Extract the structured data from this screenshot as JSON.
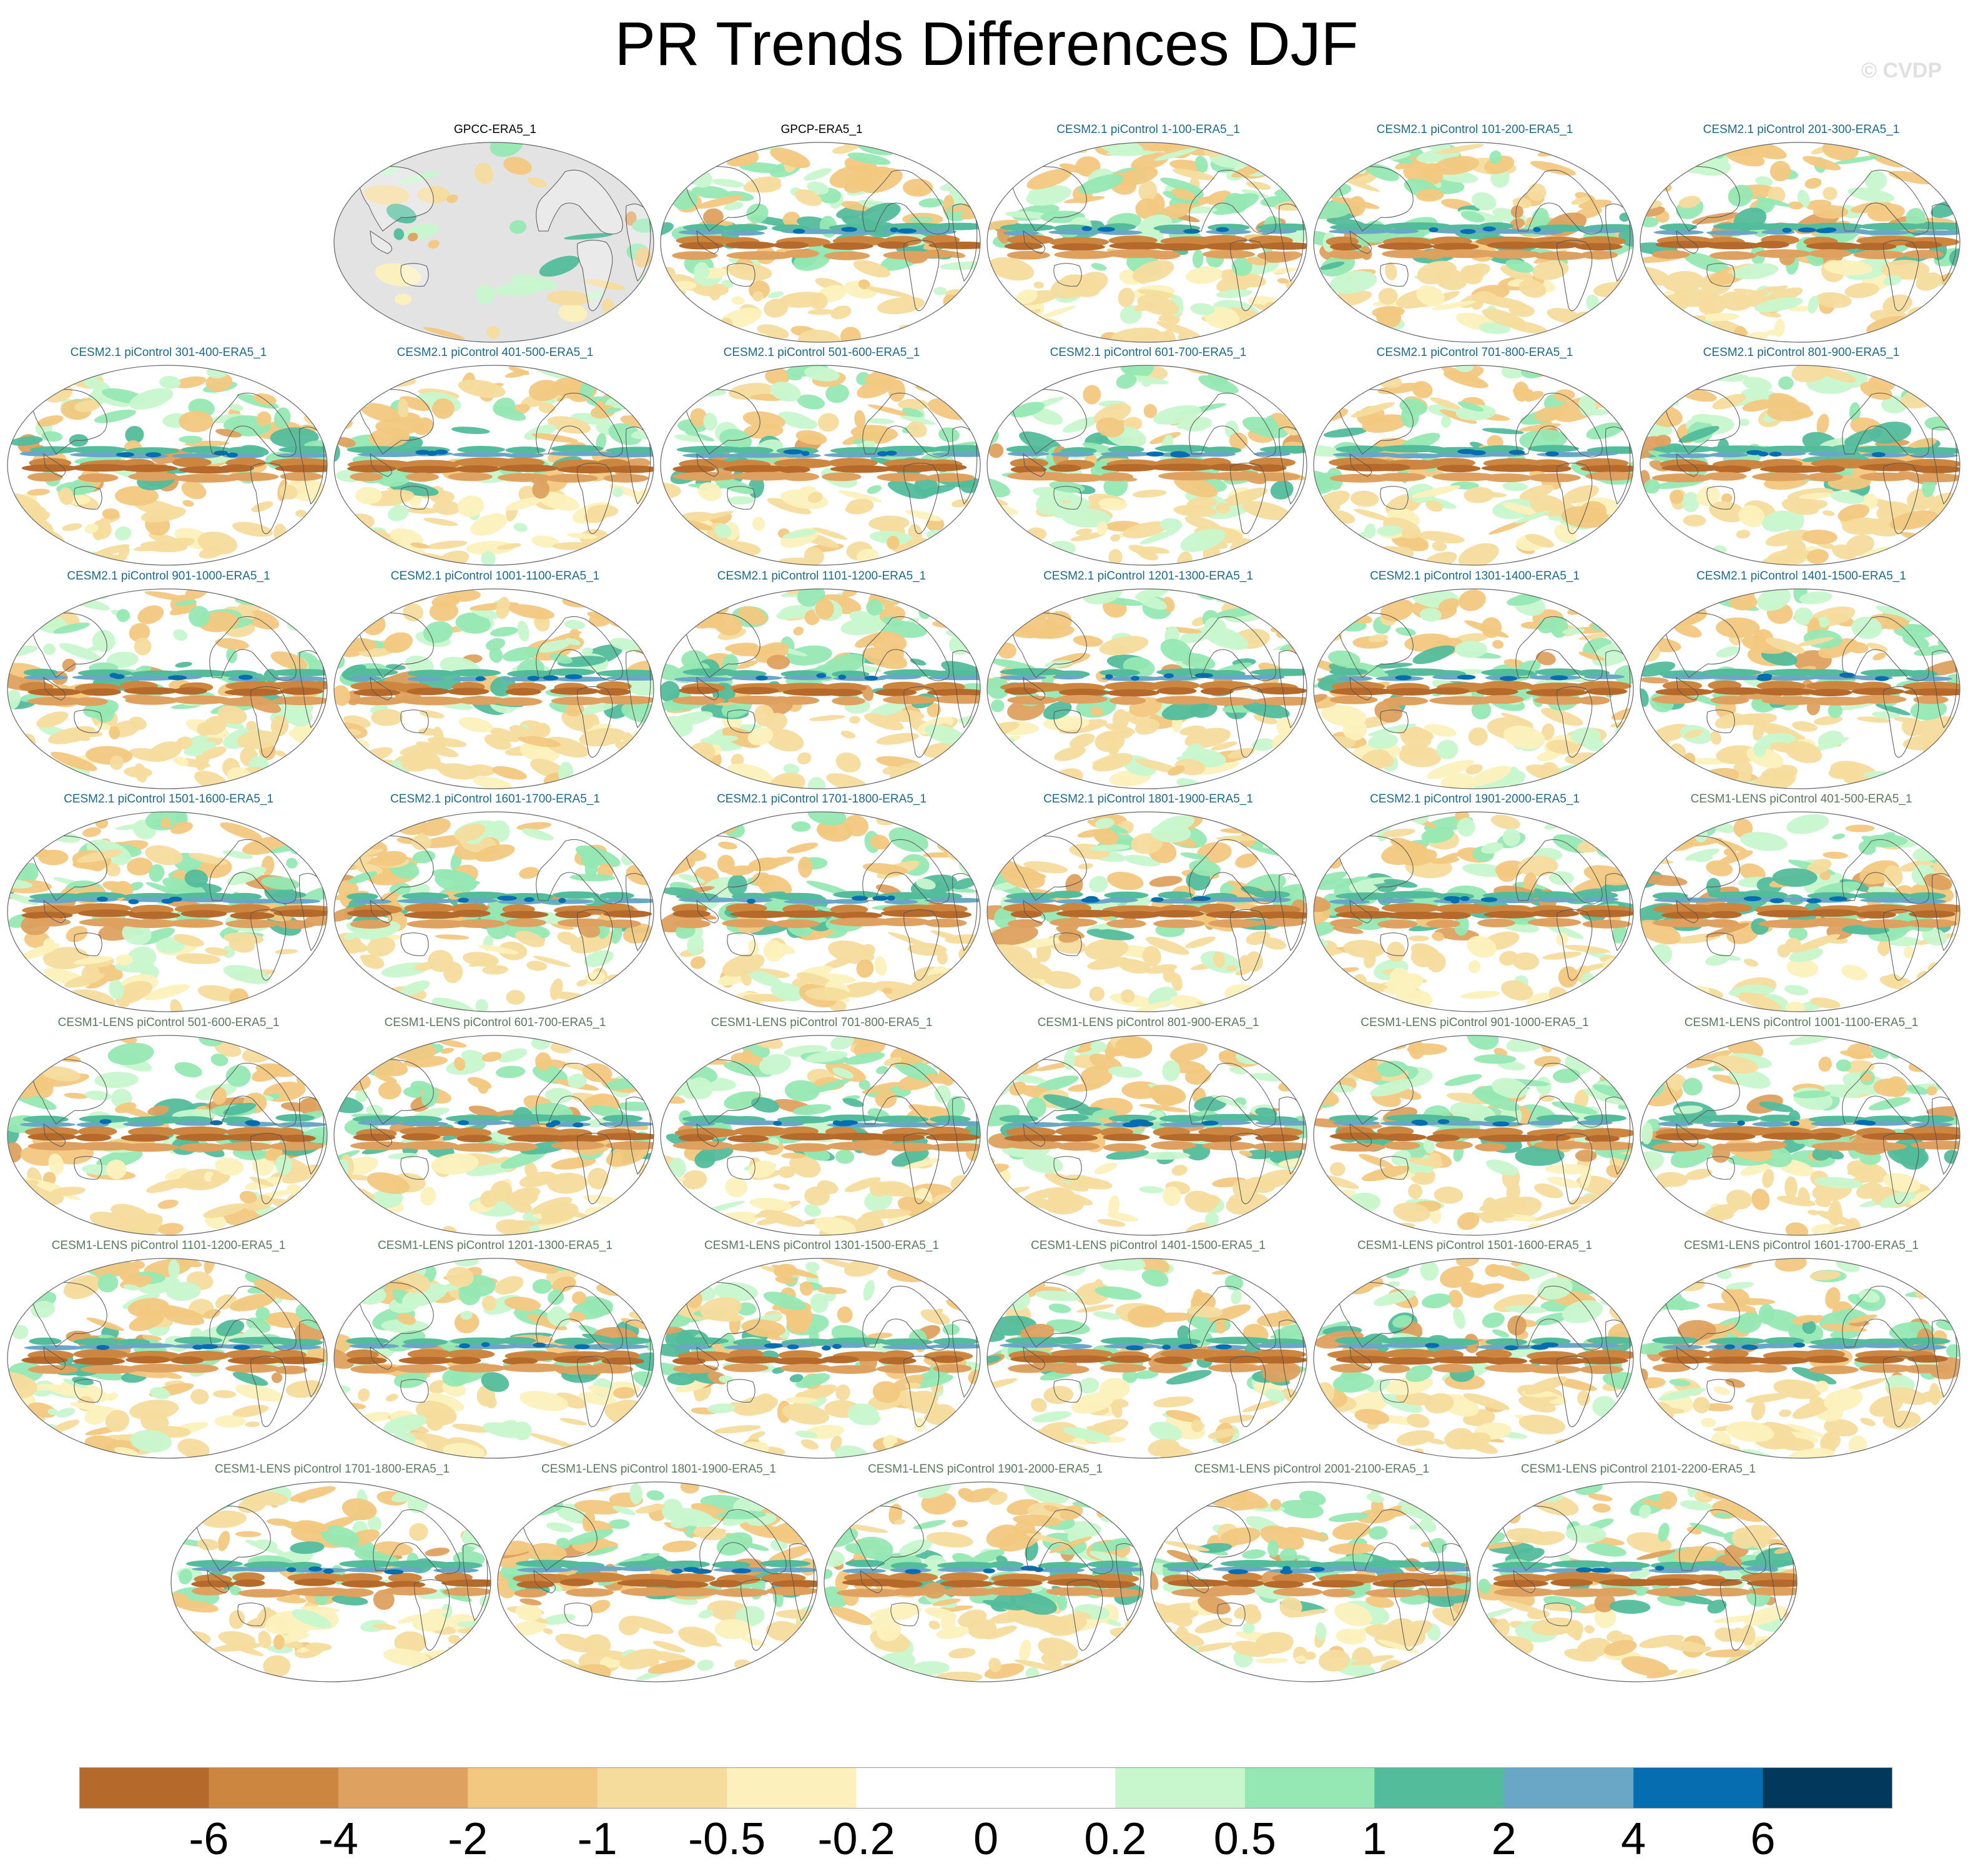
{
  "title": "PR Trends Differences DJF",
  "watermark": "© CVDP",
  "chart_data": {
    "type": "heatmap",
    "title": "PR Trends Differences DJF",
    "projection": "Robinson (global, Pacific-centered)",
    "panels": [
      {
        "label": "GPCC-ERA5_1",
        "group": "obs",
        "land_masked": true
      },
      {
        "label": "GPCP-ERA5_1",
        "group": "obs"
      },
      {
        "label": "CESM2.1 piControl 1-100-ERA5_1",
        "group": "cesm2"
      },
      {
        "label": "CESM2.1 piControl 101-200-ERA5_1",
        "group": "cesm2"
      },
      {
        "label": "CESM2.1 piControl 201-300-ERA5_1",
        "group": "cesm2"
      },
      {
        "label": "CESM2.1 piControl 301-400-ERA5_1",
        "group": "cesm2"
      },
      {
        "label": "CESM2.1 piControl 401-500-ERA5_1",
        "group": "cesm2"
      },
      {
        "label": "CESM2.1 piControl 501-600-ERA5_1",
        "group": "cesm2"
      },
      {
        "label": "CESM2.1 piControl 601-700-ERA5_1",
        "group": "cesm2"
      },
      {
        "label": "CESM2.1 piControl 701-800-ERA5_1",
        "group": "cesm2"
      },
      {
        "label": "CESM2.1 piControl 801-900-ERA5_1",
        "group": "cesm2"
      },
      {
        "label": "CESM2.1 piControl 901-1000-ERA5_1",
        "group": "cesm2"
      },
      {
        "label": "CESM2.1 piControl 1001-1100-ERA5_1",
        "group": "cesm2"
      },
      {
        "label": "CESM2.1 piControl 1101-1200-ERA5_1",
        "group": "cesm2"
      },
      {
        "label": "CESM2.1 piControl 1201-1300-ERA5_1",
        "group": "cesm2"
      },
      {
        "label": "CESM2.1 piControl 1301-1400-ERA5_1",
        "group": "cesm2"
      },
      {
        "label": "CESM2.1 piControl 1401-1500-ERA5_1",
        "group": "cesm2"
      },
      {
        "label": "CESM2.1 piControl 1501-1600-ERA5_1",
        "group": "cesm2"
      },
      {
        "label": "CESM2.1 piControl 1601-1700-ERA5_1",
        "group": "cesm2"
      },
      {
        "label": "CESM2.1 piControl 1701-1800-ERA5_1",
        "group": "cesm2"
      },
      {
        "label": "CESM2.1 piControl 1801-1900-ERA5_1",
        "group": "cesm2"
      },
      {
        "label": "CESM2.1 piControl 1901-2000-ERA5_1",
        "group": "cesm2"
      },
      {
        "label": "CESM1-LENS piControl 401-500-ERA5_1",
        "group": "cesm1"
      },
      {
        "label": "CESM1-LENS piControl 501-600-ERA5_1",
        "group": "cesm1"
      },
      {
        "label": "CESM1-LENS piControl 601-700-ERA5_1",
        "group": "cesm1"
      },
      {
        "label": "CESM1-LENS piControl 701-800-ERA5_1",
        "group": "cesm1"
      },
      {
        "label": "CESM1-LENS piControl 801-900-ERA5_1",
        "group": "cesm1"
      },
      {
        "label": "CESM1-LENS piControl 901-1000-ERA5_1",
        "group": "cesm1"
      },
      {
        "label": "CESM1-LENS piControl 1001-1100-ERA5_1",
        "group": "cesm1"
      },
      {
        "label": "CESM1-LENS piControl 1101-1200-ERA5_1",
        "group": "cesm1"
      },
      {
        "label": "CESM1-LENS piControl 1201-1300-ERA5_1",
        "group": "cesm1"
      },
      {
        "label": "CESM1-LENS piControl 1301-1500-ERA5_1",
        "group": "cesm1"
      },
      {
        "label": "CESM1-LENS piControl 1401-1500-ERA5_1",
        "group": "cesm1"
      },
      {
        "label": "CESM1-LENS piControl 1501-1600-ERA5_1",
        "group": "cesm1"
      },
      {
        "label": "CESM1-LENS piControl 1601-1700-ERA5_1",
        "group": "cesm1"
      },
      {
        "label": "CESM1-LENS piControl 1701-1800-ERA5_1",
        "group": "cesm1"
      },
      {
        "label": "CESM1-LENS piControl 1801-1900-ERA5_1",
        "group": "cesm1"
      },
      {
        "label": "CESM1-LENS piControl 1901-2000-ERA5_1",
        "group": "cesm1"
      },
      {
        "label": "CESM1-LENS piControl 2001-2100-ERA5_1",
        "group": "cesm1"
      },
      {
        "label": "CESM1-LENS piControl 2101-2200-ERA5_1",
        "group": "cesm1"
      }
    ],
    "colorbar": {
      "tick_labels": [
        "-6",
        "-4",
        "-2",
        "-1",
        "-0.5",
        "-0.2",
        "0",
        "0.2",
        "0.5",
        "1",
        "2",
        "4",
        "6"
      ],
      "colors": [
        "#b5692b",
        "#cc863f",
        "#dea15f",
        "#f2c880",
        "#f5dc9d",
        "#fcf1bd",
        "#ffffff",
        "#ffffff",
        "#c8f7cd",
        "#95e8b3",
        "#52bc9b",
        "#6aa6c6",
        "#056db0",
        "#02385b"
      ]
    },
    "legend_position": "bottom"
  }
}
